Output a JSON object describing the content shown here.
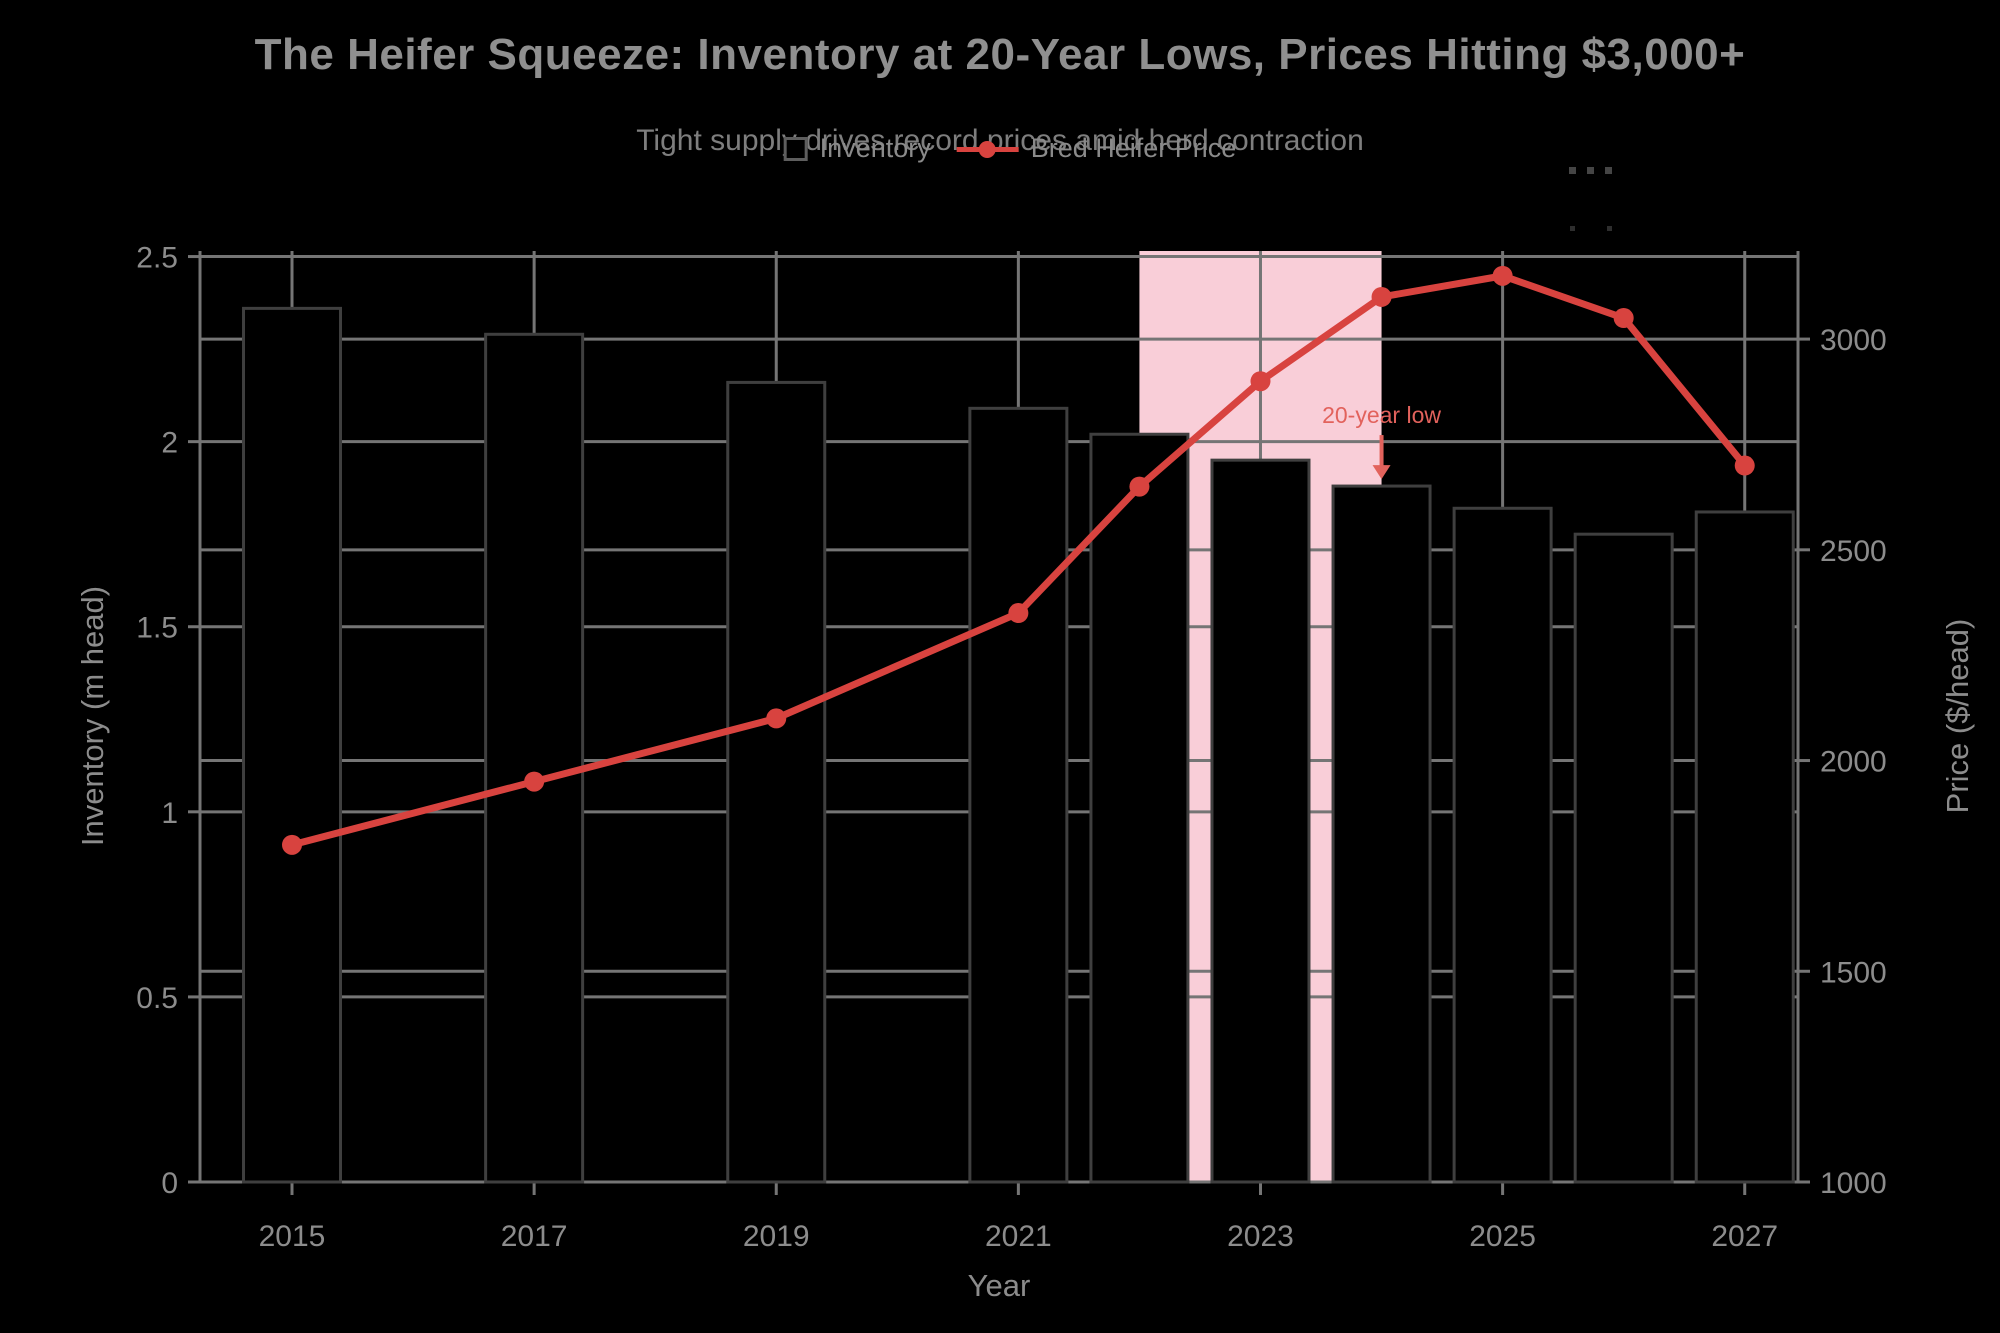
{
  "title": "The Heifer Squeeze: Inventory at 20-Year Lows, Prices Hitting $3,000+",
  "subtitle": "Tight supply drives record prices amid herd contraction",
  "legend": {
    "inventory_label": "Inventory",
    "price_label": "Bred Heifer Price"
  },
  "chart_data": {
    "type": "bar",
    "subtype": "dual-axis bar + line",
    "x": [
      2015,
      2017,
      2019,
      2021,
      2022,
      2023,
      2024,
      2025,
      2026,
      2027
    ],
    "series": [
      {
        "name": "Inventory",
        "type": "bar",
        "axis": "left",
        "values": [
          2.36,
          2.29,
          2.16,
          2.09,
          2.02,
          1.95,
          1.88,
          1.82,
          1.75,
          1.81
        ]
      },
      {
        "name": "Bred Heifer Price",
        "type": "line",
        "axis": "right",
        "values": [
          1800,
          1950,
          2100,
          2350,
          2650,
          2900,
          3100,
          3150,
          3050,
          2700
        ]
      }
    ],
    "title": "The Heifer Squeeze: Inventory at 20-Year Lows, Prices Hitting $3,000+",
    "subtitle": "Tight supply drives record prices amid herd contraction",
    "xlabel": "Year",
    "ylabel_left": "Inventory (m head)",
    "ylabel_right": "Price ($/head)",
    "x_ticks": [
      2015,
      2017,
      2019,
      2021,
      2023,
      2025,
      2027
    ],
    "x_range": [
      2014.24,
      2027.44
    ],
    "y_left_ticks": [
      0,
      0.5,
      1,
      1.5,
      2,
      2.5
    ],
    "y_left_range": [
      0,
      2.515
    ],
    "y_right_ticks": [
      1000,
      1500,
      2000,
      2500,
      3000
    ],
    "y_right_range": [
      1000,
      3209
    ],
    "grid": true,
    "legend_position": "top-center",
    "highlight_region": {
      "x0": 2022,
      "x1": 2024
    },
    "annotation": {
      "text": "20-year low",
      "x": 2024,
      "points_to": "top of 2024 bar"
    }
  },
  "colors": {
    "background": "#000000",
    "grid": "#757575",
    "axis_line": "#757575",
    "tick_label": "#8c8c8c",
    "bar_fill": "#000000",
    "bar_border": "#3f3f3f",
    "line": "#d8433f",
    "highlight_pink": "#f9ced8",
    "annotation_red": "#e2625c"
  }
}
